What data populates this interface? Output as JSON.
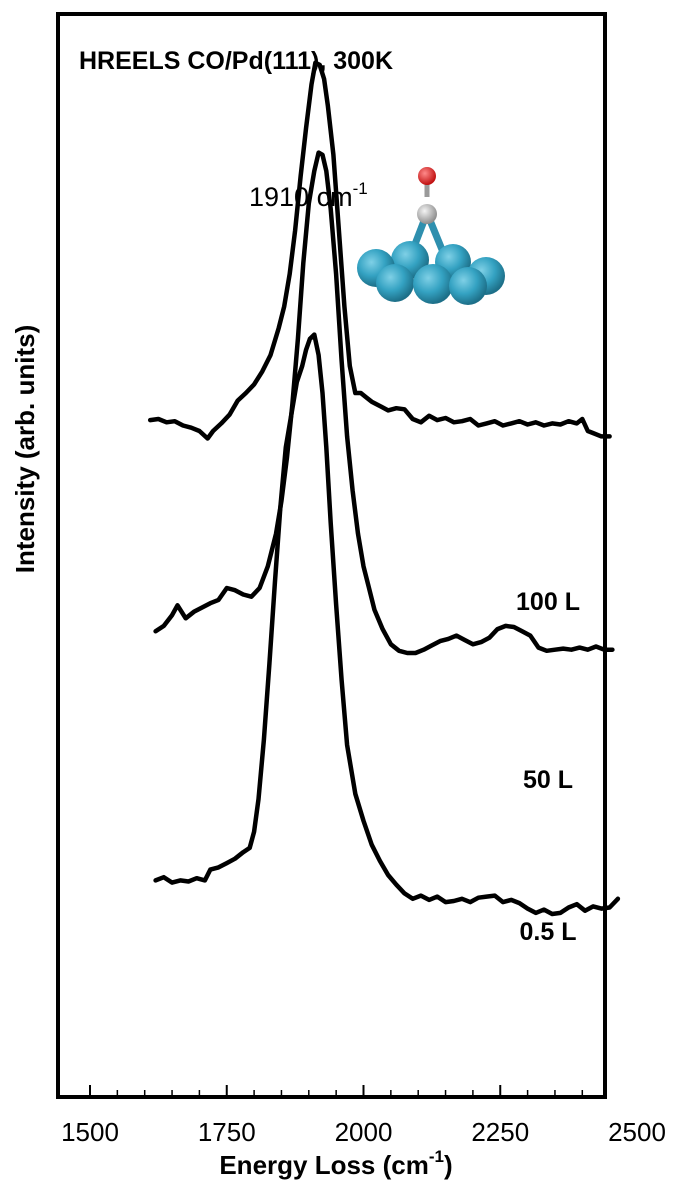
{
  "chart_data": {
    "type": "line",
    "title": "HREELS CO/Pd(111), 300K",
    "xlabel": {
      "main": "Energy Loss (cm",
      "sup": "-1",
      "end": ")"
    },
    "ylabel": "Intensity (arb. units)",
    "xlim": [
      1500,
      2500
    ],
    "xticks": [
      "1500",
      "1750",
      "2000",
      "2250",
      "2500"
    ],
    "xtick_values": [
      1500,
      1750,
      2000,
      2250,
      2500
    ],
    "ylim": [
      0,
      100
    ],
    "grid": false,
    "line_color": "#000000",
    "annotation": {
      "main": "1910 cm",
      "sup": "-1",
      "x": 1910
    },
    "inset": "co-on-pd-hollow-site-icon",
    "series": [
      {
        "name": "100 L",
        "x": [
          1610,
          1625,
          1640,
          1655,
          1670,
          1685,
          1700,
          1715,
          1725,
          1740,
          1755,
          1770,
          1785,
          1800,
          1815,
          1830,
          1845,
          1855,
          1865,
          1875,
          1885,
          1895,
          1905,
          1912,
          1920,
          1928,
          1935,
          1945,
          1955,
          1965,
          1975,
          1985,
          1995,
          2005,
          2015,
          2030,
          2045,
          2060,
          2075,
          2090,
          2105,
          2120,
          2135,
          2150,
          2165,
          2180,
          2195,
          2210,
          2225,
          2240,
          2255,
          2270,
          2285,
          2300,
          2315,
          2330,
          2345,
          2360,
          2375,
          2390,
          2400,
          2410,
          2420,
          2435,
          2450
        ],
        "y": [
          62.5,
          62.6,
          62.3,
          62.4,
          62.0,
          61.8,
          61.5,
          60.8,
          61.5,
          62.2,
          63.0,
          64.3,
          65.0,
          65.8,
          67.0,
          68.5,
          71.0,
          73.0,
          76.0,
          80.0,
          85.0,
          89.5,
          93.5,
          95.5,
          95.3,
          94.0,
          91.5,
          87.0,
          80.0,
          73.0,
          67.5,
          65.0,
          65.0,
          64.6,
          64.2,
          63.8,
          63.4,
          63.6,
          63.5,
          62.6,
          62.3,
          62.9,
          62.5,
          62.7,
          62.3,
          62.4,
          62.6,
          62.0,
          62.2,
          62.4,
          62.0,
          62.2,
          62.4,
          62.1,
          62.3,
          62.0,
          62.2,
          62.1,
          62.4,
          62.2,
          62.6,
          61.5,
          61.3,
          61.0,
          61.0
        ]
      },
      {
        "name": "50 L",
        "x": [
          1620,
          1635,
          1650,
          1660,
          1675,
          1690,
          1705,
          1720,
          1735,
          1750,
          1765,
          1780,
          1795,
          1810,
          1825,
          1840,
          1850,
          1860,
          1870,
          1880,
          1890,
          1900,
          1910,
          1918,
          1925,
          1932,
          1940,
          1950,
          1960,
          1970,
          1980,
          1990,
          2000,
          2010,
          2020,
          2035,
          2050,
          2065,
          2080,
          2095,
          2110,
          2125,
          2140,
          2155,
          2170,
          2185,
          2200,
          2215,
          2230,
          2245,
          2260,
          2275,
          2290,
          2305,
          2320,
          2335,
          2350,
          2365,
          2380,
          2395,
          2410,
          2425,
          2440,
          2455
        ],
        "y": [
          43.0,
          43.5,
          44.5,
          45.4,
          44.2,
          44.8,
          45.2,
          45.6,
          45.9,
          47.0,
          46.8,
          46.4,
          46.2,
          47.0,
          49.0,
          52.0,
          55.0,
          59.0,
          64.0,
          70.0,
          77.0,
          82.5,
          85.5,
          87.2,
          87.0,
          85.5,
          82.0,
          76.0,
          68.0,
          61.0,
          56.0,
          52.0,
          49.0,
          47.0,
          45.0,
          43.2,
          41.8,
          41.2,
          41.0,
          41.0,
          41.3,
          41.7,
          42.1,
          42.3,
          42.6,
          42.2,
          41.8,
          42.0,
          42.4,
          43.2,
          43.5,
          43.4,
          43.0,
          42.6,
          41.5,
          41.2,
          41.3,
          41.4,
          41.3,
          41.5,
          41.3,
          41.6,
          41.3,
          41.3
        ]
      },
      {
        "name": "0.5 L",
        "x": [
          1620,
          1635,
          1650,
          1665,
          1680,
          1695,
          1710,
          1720,
          1735,
          1750,
          1765,
          1780,
          1792,
          1800,
          1808,
          1818,
          1828,
          1838,
          1848,
          1858,
          1868,
          1878,
          1888,
          1895,
          1902,
          1910,
          1918,
          1925,
          1932,
          1940,
          1950,
          1960,
          1970,
          1985,
          2000,
          2015,
          2030,
          2045,
          2060,
          2075,
          2090,
          2105,
          2120,
          2135,
          2150,
          2165,
          2180,
          2195,
          2210,
          2225,
          2240,
          2255,
          2270,
          2285,
          2300,
          2315,
          2330,
          2345,
          2360,
          2375,
          2390,
          2405,
          2420,
          2435,
          2450,
          2465
        ],
        "y": [
          20.0,
          20.3,
          19.8,
          20.0,
          19.9,
          20.2,
          20.0,
          21.0,
          21.2,
          21.6,
          22.0,
          22.6,
          23.0,
          24.5,
          27.5,
          33.0,
          40.0,
          47.5,
          54.5,
          60.0,
          63.0,
          66.0,
          67.5,
          69.0,
          70.0,
          70.4,
          68.5,
          65.0,
          60.0,
          53.0,
          45.5,
          38.5,
          32.5,
          28.0,
          25.5,
          23.3,
          21.8,
          20.5,
          19.6,
          18.8,
          18.3,
          18.6,
          18.2,
          18.5,
          18.0,
          18.1,
          18.3,
          18.0,
          18.4,
          18.5,
          18.6,
          18.0,
          18.2,
          17.9,
          17.4,
          17.0,
          17.3,
          16.9,
          17.0,
          17.5,
          17.8,
          17.2,
          17.6,
          17.4,
          17.5,
          18.3
        ]
      }
    ]
  }
}
